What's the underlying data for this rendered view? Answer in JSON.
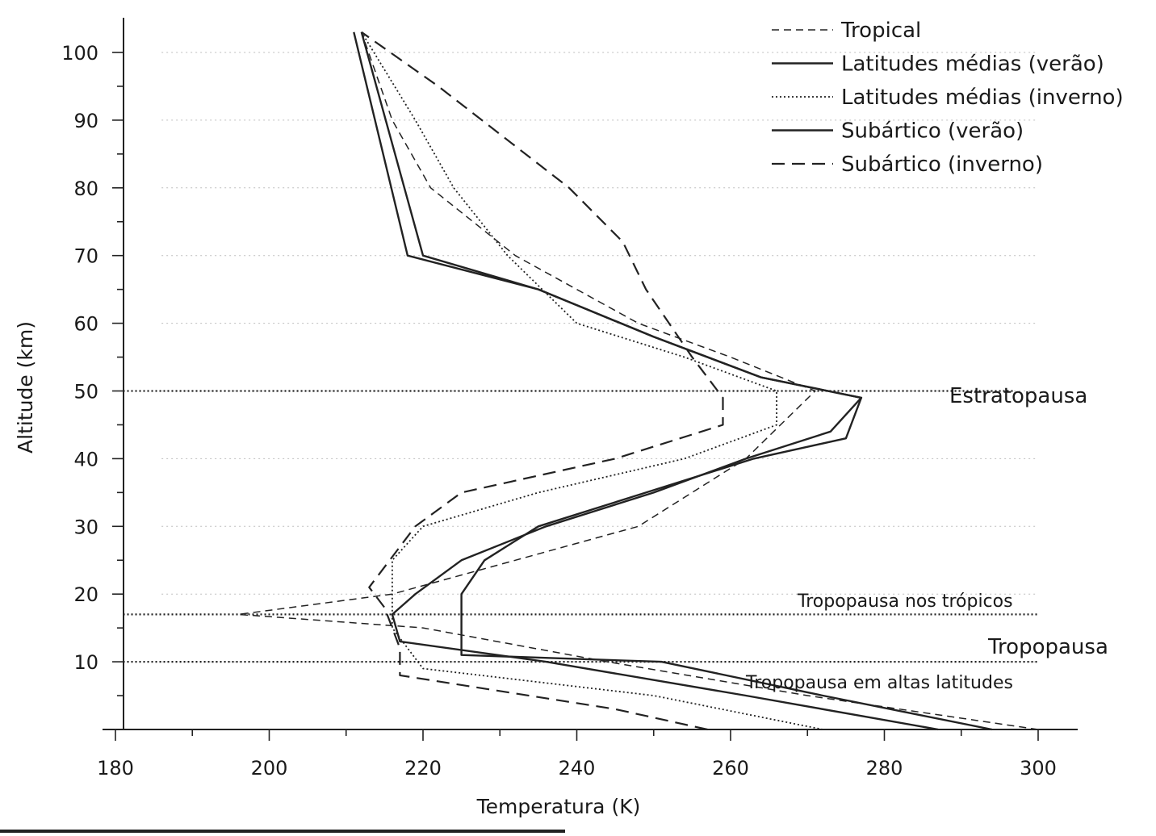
{
  "chart_data": {
    "type": "line",
    "title": "",
    "xlabel": "Temperatura (K)",
    "ylabel": "Altitude (km)",
    "xlim": [
      180,
      305
    ],
    "ylim": [
      0,
      105
    ],
    "x_ticks": [
      "180",
      "200",
      "220",
      "240",
      "260",
      "280",
      "300"
    ],
    "y_ticks": [
      "10",
      "20",
      "30",
      "40",
      "50",
      "60",
      "70",
      "80",
      "90",
      "100"
    ],
    "grid": true,
    "legend_position": "top-right",
    "series": [
      {
        "name": "Tropical",
        "style": "dashed-short",
        "points": [
          [
            300,
            0
          ],
          [
            270,
            5
          ],
          [
            244,
            10
          ],
          [
            220,
            15
          ],
          [
            196,
            17
          ],
          [
            216,
            20
          ],
          [
            232,
            25
          ],
          [
            248,
            30
          ],
          [
            262,
            40
          ],
          [
            271,
            50
          ],
          [
            260,
            55
          ],
          [
            248,
            60
          ],
          [
            232,
            70
          ],
          [
            221,
            80
          ],
          [
            216,
            90
          ],
          [
            212,
            103
          ]
        ]
      },
      {
        "name": "Latitudes médias (verão)",
        "style": "solid",
        "points": [
          [
            294,
            0
          ],
          [
            272,
            5
          ],
          [
            251,
            10
          ],
          [
            225,
            11
          ],
          [
            225,
            20
          ],
          [
            228,
            25
          ],
          [
            235,
            30
          ],
          [
            249,
            35
          ],
          [
            263,
            40
          ],
          [
            275,
            43
          ],
          [
            277,
            49
          ],
          [
            264,
            52
          ],
          [
            250,
            58
          ],
          [
            235,
            65
          ],
          [
            218,
            70
          ],
          [
            211,
            103
          ]
        ]
      },
      {
        "name": "Latitudes médias (inverno)",
        "style": "dotted",
        "points": [
          [
            272,
            0
          ],
          [
            250,
            5
          ],
          [
            220,
            9
          ],
          [
            216,
            15
          ],
          [
            216,
            25
          ],
          [
            220,
            30
          ],
          [
            235,
            35
          ],
          [
            254,
            40
          ],
          [
            266,
            45
          ],
          [
            266,
            50
          ],
          [
            254,
            55
          ],
          [
            240,
            60
          ],
          [
            231,
            70
          ],
          [
            224,
            80
          ],
          [
            219,
            90
          ],
          [
            212,
            103
          ]
        ]
      },
      {
        "name": "Subártico (verão)",
        "style": "solid",
        "points": [
          [
            287,
            0
          ],
          [
            262,
            5
          ],
          [
            236,
            10
          ],
          [
            217,
            13
          ],
          [
            216,
            17
          ],
          [
            219,
            20
          ],
          [
            225,
            25
          ],
          [
            236,
            30
          ],
          [
            250,
            35
          ],
          [
            262,
            40
          ],
          [
            273,
            44
          ],
          [
            277,
            49
          ],
          [
            264,
            52
          ],
          [
            250,
            58
          ],
          [
            235,
            65
          ],
          [
            220,
            70
          ],
          [
            212,
            103
          ]
        ]
      },
      {
        "name": "Subártico (inverno)",
        "style": "dashed-long",
        "points": [
          [
            257,
            0
          ],
          [
            245,
            3
          ],
          [
            217,
            8
          ],
          [
            217,
            12
          ],
          [
            215,
            18
          ],
          [
            213,
            21
          ],
          [
            219,
            30
          ],
          [
            225,
            35
          ],
          [
            245,
            40
          ],
          [
            259,
            45
          ],
          [
            259,
            49
          ],
          [
            255,
            55
          ],
          [
            249,
            65
          ],
          [
            246,
            72
          ],
          [
            239,
            80
          ],
          [
            222,
            95
          ],
          [
            212,
            103
          ]
        ]
      }
    ],
    "reference_lines": [
      {
        "y": 50,
        "label": "Estratopausa"
      },
      {
        "y": 17,
        "label": "Tropopausa nos trópicos"
      },
      {
        "y": 10,
        "label": "Tropopausa em altas latitudes"
      }
    ],
    "annotations": [
      "Tropopausa"
    ]
  }
}
